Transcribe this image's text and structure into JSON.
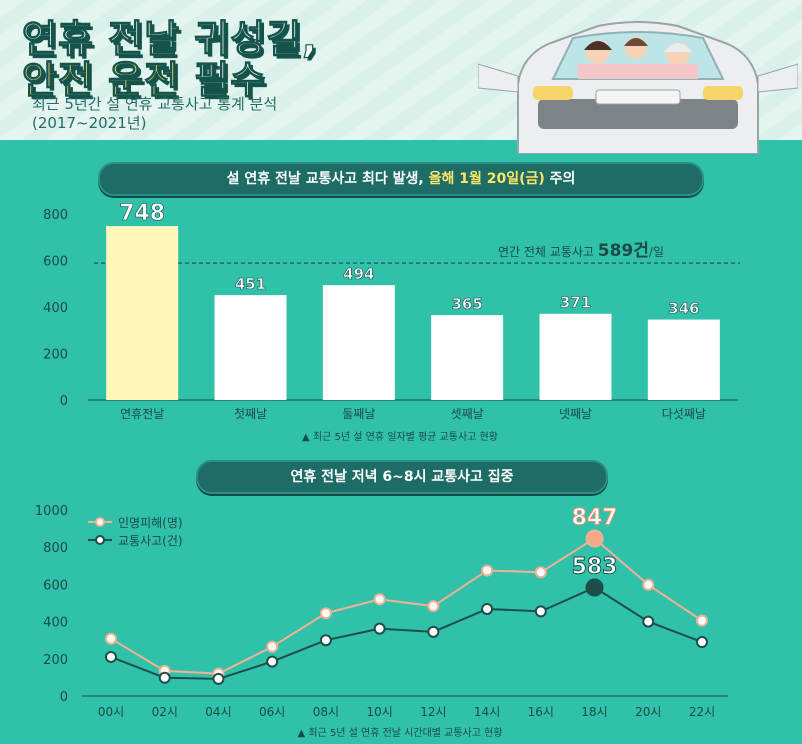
{
  "header": {
    "title_line1": "연휴 전날 귀성길,",
    "title_line2_accent": "안전 운전",
    "title_line2_rest": " 필수",
    "subtitle_line1": "최근 5년간 설 연휴 교통사고 통계 분석",
    "subtitle_line2": "(2017~2021년)"
  },
  "colors": {
    "background": "#2fc1aa",
    "highlight_bar": "#fff8b8",
    "bar": "#ffffff",
    "injury_line": "#f3b192",
    "accident_line": "#1f4e48",
    "pill": "#1d6c65"
  },
  "bar_section": {
    "pill_pre": "설 연휴 전날 교통사고 최다 발생, ",
    "pill_highlight": "올해 1월 20일(금)",
    "pill_post": " 주의",
    "note": "▲ 최근 5년 설 연휴 일자별 평균 교통사고 현황",
    "ref_label_pre": "연간 전체 교통사고 ",
    "ref_value": "589건",
    "ref_label_post": "/일"
  },
  "line_section": {
    "pill": "연휴 전날 저녁 6~8시 교통사고 집중",
    "note": "▲ 최근 5년 설 연휴 전날 시간대별 교통사고 현황",
    "legend": [
      "인명피해(명)",
      "교통사고(건)"
    ]
  },
  "chart_data": [
    {
      "type": "bar",
      "categories": [
        "연휴전날",
        "첫째날",
        "둘째날",
        "셋째날",
        "넷째날",
        "다섯째날"
      ],
      "values": [
        748,
        451,
        494,
        365,
        371,
        346
      ],
      "ylim": [
        0,
        800
      ],
      "yticks": [
        0,
        200,
        400,
        600,
        800
      ],
      "reference_line": 589,
      "highlight_index": 0
    },
    {
      "type": "line",
      "x": [
        "00시",
        "02시",
        "04시",
        "06시",
        "08시",
        "10시",
        "12시",
        "14시",
        "16시",
        "18시",
        "20시",
        "22시"
      ],
      "ylim": [
        0,
        1000
      ],
      "yticks": [
        0,
        200,
        400,
        600,
        800,
        1000
      ],
      "series": [
        {
          "name": "인명피해(명)",
          "values": [
            308,
            135,
            120,
            265,
            445,
            520,
            483,
            675,
            665,
            847,
            598,
            405
          ],
          "labeled_index": 9,
          "label": "847"
        },
        {
          "name": "교통사고(건)",
          "values": [
            210,
            98,
            92,
            185,
            300,
            362,
            345,
            468,
            455,
            583,
            400,
            290
          ],
          "labeled_index": 9,
          "label": "583"
        }
      ]
    }
  ]
}
